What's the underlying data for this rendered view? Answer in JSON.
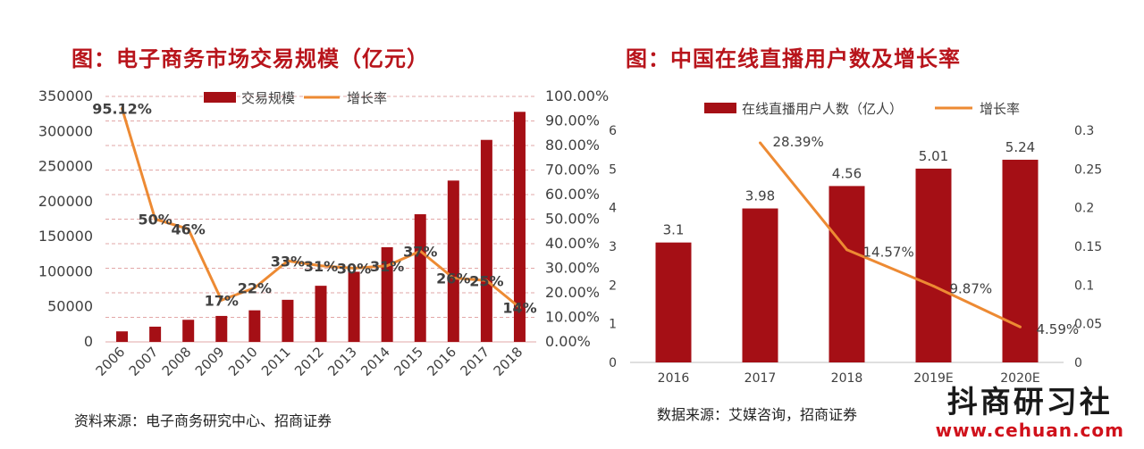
{
  "chart_data": [
    {
      "type": "bar",
      "title": "图：电子商务市场交易规模（亿元）",
      "source": "资料来源：电子商务研究中心、招商证券",
      "categories": [
        "2006",
        "2007",
        "2008",
        "2009",
        "2010",
        "2011",
        "2012",
        "2013",
        "2014",
        "2015",
        "2016",
        "2017",
        "2018"
      ],
      "series": [
        {
          "name": "交易规模",
          "type": "bar",
          "axis": "left",
          "values": [
            15000,
            21700,
            31500,
            37000,
            45000,
            60000,
            80000,
            100000,
            135000,
            182000,
            230000,
            288000,
            328000
          ]
        },
        {
          "name": "增长率",
          "type": "line",
          "axis": "right",
          "values": [
            95.12,
            50,
            46,
            17,
            22,
            33,
            31,
            30,
            31,
            37,
            26,
            25,
            14
          ],
          "labels": [
            "95.12%",
            "50%",
            "46%",
            "17%",
            "22%",
            "33%",
            "31%",
            "30%",
            "31%",
            "37%",
            "26%",
            "25%",
            "14%"
          ]
        }
      ],
      "left_axis": {
        "min": 0,
        "max": 350000,
        "ticks": [
          "0",
          "50000",
          "100000",
          "150000",
          "200000",
          "250000",
          "300000",
          "350000"
        ]
      },
      "right_axis": {
        "min": 0,
        "max": 100,
        "ticks": [
          "0.00%",
          "10.00%",
          "20.00%",
          "30.00%",
          "40.00%",
          "50.00%",
          "60.00%",
          "70.00%",
          "80.00%",
          "90.00%",
          "100.00%"
        ]
      },
      "grid": true,
      "legend_position": "top",
      "colors": {
        "bar": "#a50f15",
        "line": "#ed8a33",
        "grid": "#e2a7a7"
      }
    },
    {
      "type": "bar",
      "title": "图：中国在线直播用户数及增长率",
      "source": "数据来源：艾媒咨询，招商证券",
      "categories": [
        "2016",
        "2017",
        "2018",
        "2019E",
        "2020E"
      ],
      "series": [
        {
          "name": "在线直播用户人数（亿人）",
          "type": "bar",
          "axis": "left",
          "values": [
            3.1,
            3.98,
            4.56,
            5.01,
            5.24
          ],
          "labels": [
            "3.1",
            "3.98",
            "4.56",
            "5.01",
            "5.24"
          ]
        },
        {
          "name": "增长率",
          "type": "line",
          "axis": "right",
          "values": [
            null,
            0.2839,
            0.1457,
            0.0987,
            0.0459
          ],
          "labels": [
            "",
            "28.39%",
            "14.57%",
            "9.87%",
            "4.59%"
          ]
        }
      ],
      "left_axis": {
        "min": 0,
        "max": 6,
        "ticks": [
          "0",
          "1",
          "2",
          "3",
          "4",
          "5",
          "6"
        ]
      },
      "right_axis": {
        "min": 0,
        "max": 0.3,
        "ticks": [
          "0",
          "0.05",
          "0.1",
          "0.15",
          "0.2",
          "0.25",
          "0.3"
        ]
      },
      "grid": false,
      "legend_position": "top",
      "colors": {
        "bar": "#a50f15",
        "line": "#ed8a33"
      }
    }
  ],
  "watermark": {
    "text": "抖商研习社",
    "url": "www.cehuan.com"
  }
}
